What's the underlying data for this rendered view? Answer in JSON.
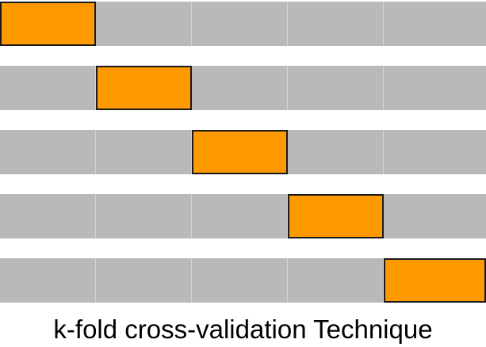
{
  "title": "k-fold cross-validation Technique",
  "colors": {
    "train_fold": "#b9b9b9",
    "test_fold": "#ff9900",
    "test_border": "#1a1a1a",
    "background": "#ffffff"
  },
  "folds": {
    "k": 5,
    "rows": [
      {
        "test_index": 0
      },
      {
        "test_index": 1
      },
      {
        "test_index": 2
      },
      {
        "test_index": 3
      },
      {
        "test_index": 4
      }
    ]
  }
}
